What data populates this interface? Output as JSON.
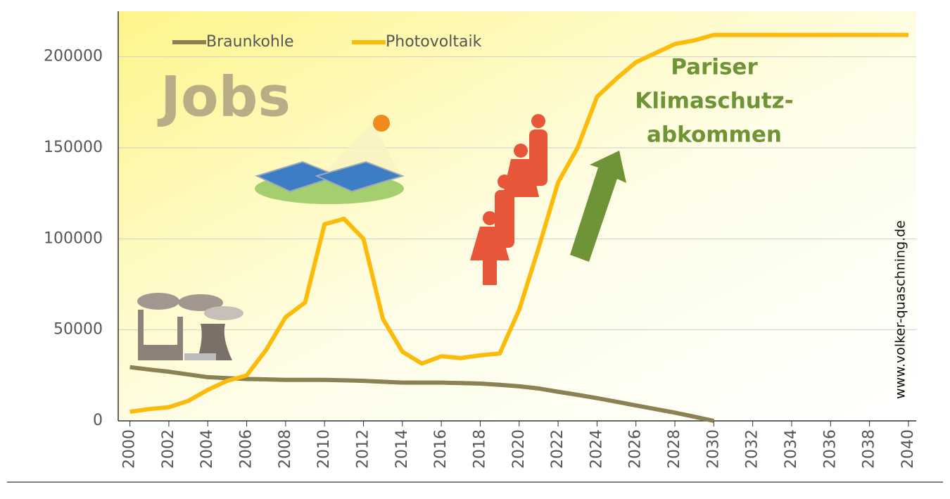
{
  "chart_data": {
    "type": "line",
    "x": [
      2000,
      2001,
      2002,
      2003,
      2004,
      2005,
      2006,
      2007,
      2008,
      2009,
      2010,
      2011,
      2012,
      2013,
      2014,
      2015,
      2016,
      2017,
      2018,
      2019,
      2020,
      2021,
      2022,
      2023,
      2024,
      2025,
      2026,
      2027,
      2028,
      2029,
      2030,
      2040
    ],
    "series": [
      {
        "name": "Braunkohle",
        "color": "#8b8153",
        "values": [
          29500,
          28200,
          27000,
          25500,
          24000,
          23500,
          23000,
          22800,
          22500,
          22500,
          22500,
          22300,
          22000,
          21500,
          21000,
          21000,
          21000,
          20800,
          20500,
          19800,
          19000,
          17800,
          16000,
          14300,
          12500,
          10500,
          8500,
          6500,
          4500,
          2300,
          0,
          null
        ]
      },
      {
        "name": "Photovoltaik",
        "color": "#fbbb0b",
        "values": [
          5000,
          6500,
          7500,
          11000,
          17000,
          22000,
          25000,
          39000,
          57000,
          65000,
          108000,
          111000,
          100000,
          56000,
          38000,
          31500,
          35500,
          34500,
          36000,
          37000,
          61000,
          95000,
          131000,
          150000,
          178000,
          188000,
          197000,
          202000,
          207000,
          209000,
          212000,
          212000
        ]
      }
    ],
    "xlim": [
      1999.4,
      2040.4
    ],
    "xticks": [
      2000,
      2002,
      2004,
      2006,
      2008,
      2010,
      2012,
      2014,
      2016,
      2018,
      2020,
      2022,
      2024,
      2026,
      2028,
      2030,
      2032,
      2034,
      2036,
      2038,
      2040
    ],
    "ylim": [
      0,
      225000
    ],
    "yticks": [
      0,
      50000,
      100000,
      150000,
      200000
    ],
    "grid": true,
    "legend": "top",
    "annotations": [
      "Jobs",
      "Pariser",
      "Klimaschutz-",
      "abkommen",
      "www.volker-quaschning.de"
    ]
  }
}
